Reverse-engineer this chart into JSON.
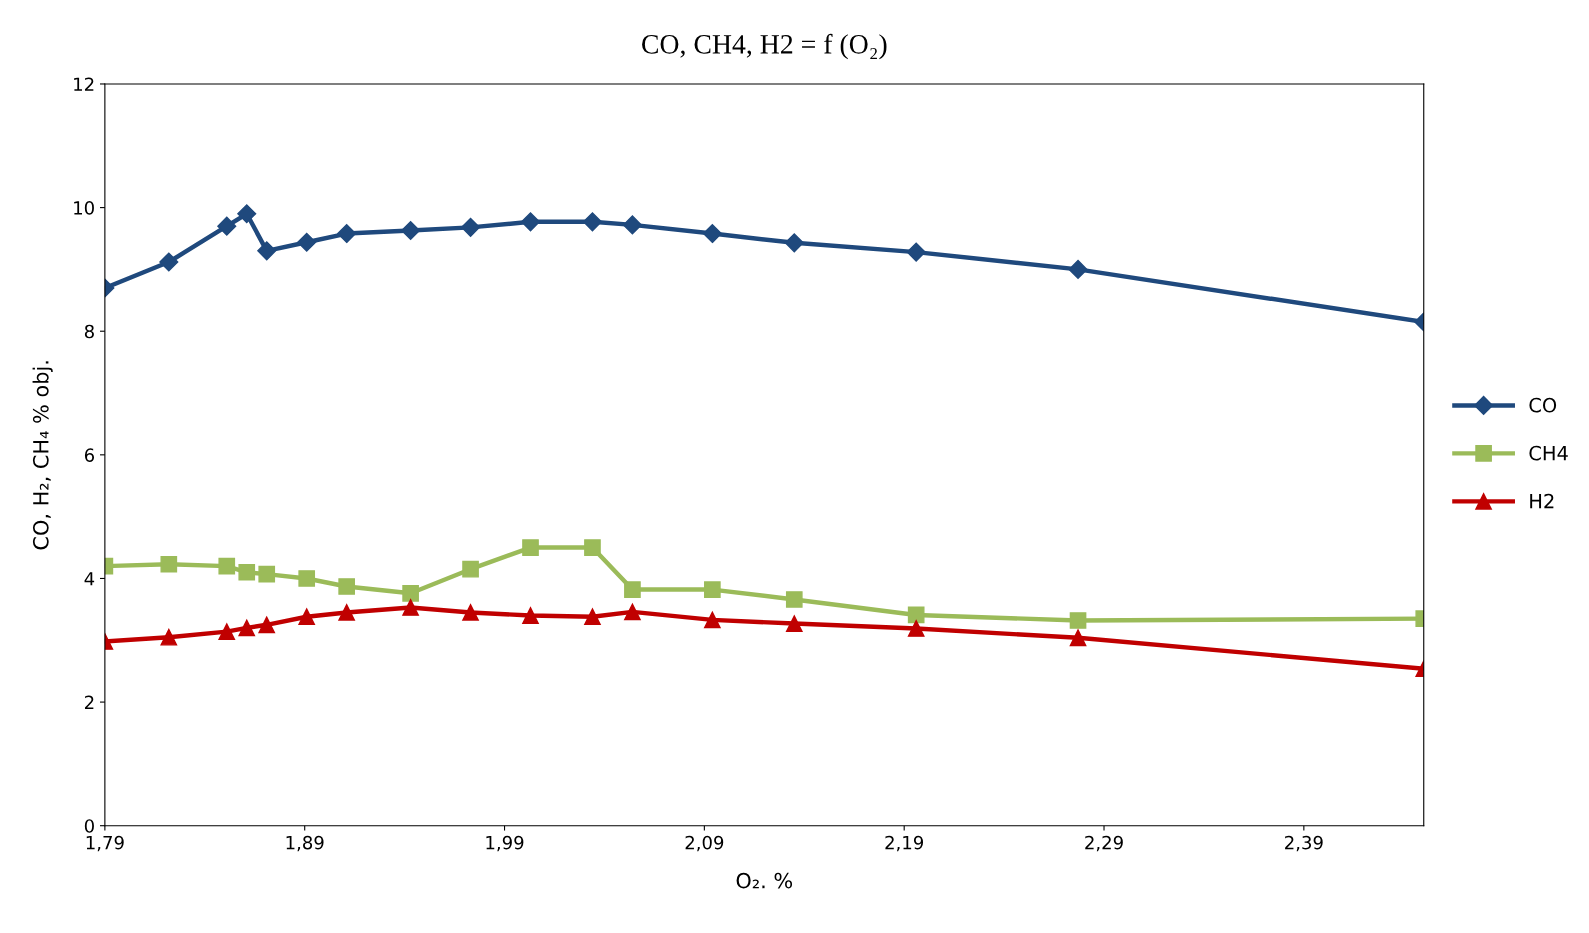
{
  "chart_data": {
    "type": "line",
    "title": "CO, CH4, H2 = f (O₂)",
    "xlabel": "O₂. %",
    "ylabel": "CO, H₂, CH₄ % obj.",
    "x": [
      1.79,
      1.822,
      1.851,
      1.861,
      1.871,
      1.891,
      1.911,
      1.943,
      1.973,
      2.003,
      2.034,
      2.054,
      2.094,
      2.135,
      2.196,
      2.277,
      2.45
    ],
    "series": [
      {
        "name": "CO",
        "color": "#1f497d",
        "marker": "diamond",
        "values": [
          8.7,
          9.12,
          9.7,
          9.9,
          9.3,
          9.44,
          9.58,
          9.63,
          9.68,
          9.77,
          9.77,
          9.72,
          9.58,
          9.43,
          9.28,
          9.0,
          8.15
        ]
      },
      {
        "name": "CH4",
        "color": "#9bbb59",
        "marker": "square",
        "values": [
          4.2,
          4.23,
          4.2,
          4.1,
          4.07,
          4.0,
          3.87,
          3.76,
          4.15,
          4.5,
          4.5,
          3.82,
          3.82,
          3.66,
          3.41,
          3.32,
          3.35
        ]
      },
      {
        "name": "H2",
        "color": "#c00000",
        "marker": "triangle",
        "values": [
          2.98,
          3.05,
          3.14,
          3.2,
          3.25,
          3.38,
          3.45,
          3.53,
          3.45,
          3.4,
          3.38,
          3.46,
          3.33,
          3.27,
          3.19,
          3.04,
          2.54
        ]
      }
    ],
    "xlim": [
      1.79,
      2.45
    ],
    "xticks": [
      {
        "value": 1.79,
        "label": "1,79"
      },
      {
        "value": 1.89,
        "label": "1,89"
      },
      {
        "value": 1.99,
        "label": "1,99"
      },
      {
        "value": 2.09,
        "label": "2,09"
      },
      {
        "value": 2.19,
        "label": "2,19"
      },
      {
        "value": 2.29,
        "label": "2,29"
      },
      {
        "value": 2.39,
        "label": "2,39"
      }
    ],
    "ylim": [
      0,
      12
    ],
    "yticks": [
      0,
      2,
      4,
      6,
      8,
      10,
      12
    ],
    "grid": false,
    "legend": "right",
    "line_style": "solid"
  }
}
